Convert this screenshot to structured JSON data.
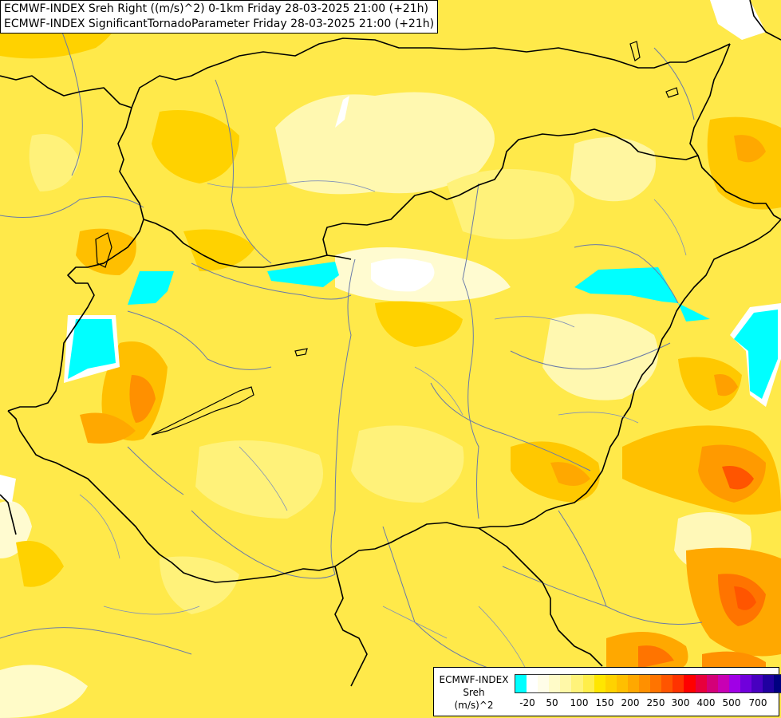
{
  "title": {
    "line1": "ECMWF-INDEX Sreh Right ((m/s)^2) 0-1km Friday 28-03-2025 21:00 (+21h)",
    "line2": "ECMWF-INDEX SignificantTornadoParameter Friday 28-03-2025 21:00 (+21h)"
  },
  "legend": {
    "title_line1": "ECMWF-INDEX",
    "title_line2": "Sreh",
    "title_line3": "(m/s)^2",
    "ticks": [
      "-20",
      "50",
      "100",
      "150",
      "200",
      "250",
      "300",
      "400",
      "500",
      "700"
    ],
    "colors": [
      "#00ffff",
      "#ffffff",
      "#fffde8",
      "#fffbc8",
      "#fff8a8",
      "#fff37a",
      "#ffee4a",
      "#ffe600",
      "#ffd200",
      "#ffbf00",
      "#ffa800",
      "#ff9000",
      "#ff7400",
      "#ff5500",
      "#ff3300",
      "#ff0000",
      "#e8003c",
      "#d40078",
      "#c800b4",
      "#a000e6",
      "#7000dc",
      "#4800c0",
      "#2000a0",
      "#000080"
    ]
  }
}
